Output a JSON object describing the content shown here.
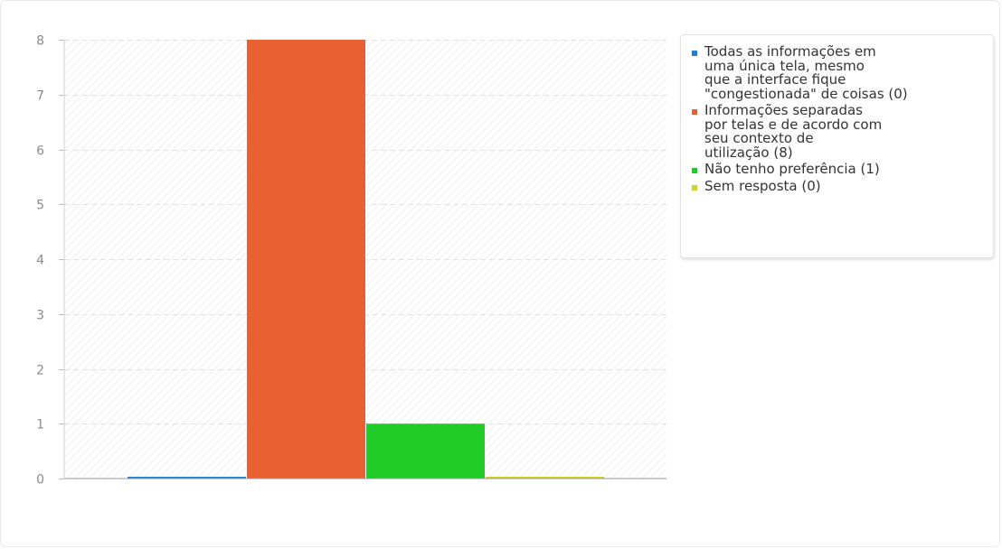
{
  "chart_data": {
    "type": "bar",
    "title": "",
    "xlabel": "",
    "ylabel": "",
    "ylim": [
      0,
      8
    ],
    "yticks": [
      0,
      1,
      2,
      3,
      4,
      5,
      6,
      7,
      8
    ],
    "grid": true,
    "legend_position": "right",
    "series": [
      {
        "name": "Todas as informações em\numa única tela, mesmo\nque a interface fique\n\"congestionada\" de coisas (0)",
        "value": 0,
        "color": "#1f7fd0"
      },
      {
        "name": "Informações separadas\npor telas e de acordo com\nseu contexto de\nutilização (8)",
        "value": 8,
        "color": "#e96032"
      },
      {
        "name": "Não tenho preferência (1)",
        "value": 1,
        "color": "#22cc27"
      },
      {
        "name": "Sem resposta (0)",
        "value": 0,
        "color": "#d2d32a"
      }
    ]
  }
}
